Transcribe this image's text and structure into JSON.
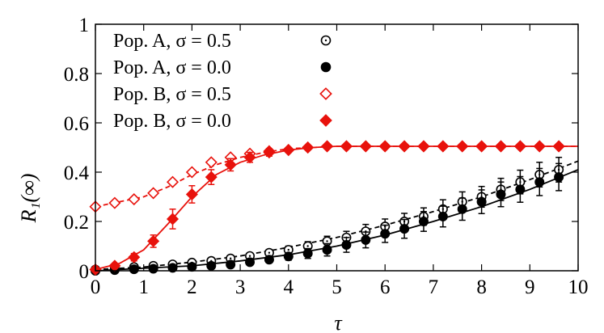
{
  "chart_data": {
    "type": "scatter",
    "title": "",
    "xlabel": "τ",
    "ylabel": "R₁(∞)",
    "xlim": [
      0,
      10
    ],
    "ylim": [
      0,
      1
    ],
    "x_ticks": [
      "0",
      "1",
      "2",
      "3",
      "4",
      "5",
      "6",
      "7",
      "8",
      "9",
      "10"
    ],
    "y_ticks": [
      "0",
      "0.2",
      "0.4",
      "0.6",
      "0.8",
      "1"
    ],
    "legend_position": "top-left",
    "grid": false,
    "series": [
      {
        "name": "Pop. A, σ = 0.5",
        "color": "#000000",
        "marker": "open-circle",
        "line": "dashed",
        "x": [
          0,
          0.4,
          0.8,
          1.2,
          1.6,
          2.0,
          2.4,
          2.8,
          3.2,
          3.6,
          4.0,
          4.4,
          4.8,
          5.2,
          5.6,
          6.0,
          6.4,
          6.8,
          7.2,
          7.6,
          8.0,
          8.4,
          8.8,
          9.2,
          9.6
        ],
        "y": [
          0.005,
          0.01,
          0.015,
          0.02,
          0.026,
          0.033,
          0.04,
          0.05,
          0.06,
          0.073,
          0.085,
          0.1,
          0.12,
          0.135,
          0.16,
          0.18,
          0.2,
          0.22,
          0.25,
          0.28,
          0.3,
          0.33,
          0.36,
          0.39,
          0.41
        ],
        "error": [
          0,
          0,
          0,
          0,
          0,
          0,
          0.005,
          0.008,
          0.01,
          0.012,
          0.015,
          0.018,
          0.02,
          0.025,
          0.028,
          0.03,
          0.033,
          0.035,
          0.038,
          0.04,
          0.042,
          0.045,
          0.048,
          0.05,
          0.05
        ],
        "fit_x": [
          0,
          1,
          2,
          3,
          4,
          5,
          6,
          7,
          8,
          9,
          10
        ],
        "fit_y": [
          0.005,
          0.015,
          0.035,
          0.06,
          0.095,
          0.135,
          0.185,
          0.24,
          0.3,
          0.37,
          0.445
        ]
      },
      {
        "name": "Pop. A, σ = 0.0",
        "color": "#000000",
        "marker": "filled-circle",
        "line": "solid",
        "x": [
          0,
          0.4,
          0.8,
          1.2,
          1.6,
          2.0,
          2.4,
          2.8,
          3.2,
          3.6,
          4.0,
          4.4,
          4.8,
          5.2,
          5.6,
          6.0,
          6.4,
          6.8,
          7.2,
          7.6,
          8.0,
          8.4,
          8.8,
          9.2,
          9.6
        ],
        "y": [
          0.0,
          0.003,
          0.006,
          0.008,
          0.012,
          0.016,
          0.02,
          0.025,
          0.035,
          0.045,
          0.058,
          0.07,
          0.085,
          0.105,
          0.125,
          0.15,
          0.17,
          0.2,
          0.22,
          0.25,
          0.28,
          0.31,
          0.33,
          0.36,
          0.38
        ],
        "error": [
          0,
          0,
          0,
          0,
          0,
          0,
          0.005,
          0.008,
          0.01,
          0.012,
          0.015,
          0.02,
          0.025,
          0.03,
          0.032,
          0.035,
          0.038,
          0.04,
          0.042,
          0.045,
          0.048,
          0.05,
          0.052,
          0.055,
          0.055
        ],
        "fit_x": [
          0,
          1,
          2,
          3,
          4,
          5,
          6,
          7,
          8,
          9,
          10
        ],
        "fit_y": [
          0.0,
          0.01,
          0.02,
          0.04,
          0.065,
          0.1,
          0.145,
          0.2,
          0.26,
          0.33,
          0.41
        ]
      },
      {
        "name": "Pop. B, σ = 0.5",
        "color": "#e8120c",
        "marker": "open-diamond",
        "line": "dashed",
        "x": [
          0,
          0.4,
          0.8,
          1.2,
          1.6,
          2.0,
          2.4,
          2.8,
          3.2,
          3.6,
          4.0,
          4.4,
          4.8,
          5.2,
          5.6,
          6.0,
          6.4,
          6.8,
          7.2,
          7.6,
          8.0,
          8.4,
          8.8,
          9.2,
          9.6
        ],
        "y": [
          0.26,
          0.275,
          0.29,
          0.315,
          0.36,
          0.4,
          0.44,
          0.46,
          0.475,
          0.485,
          0.49,
          0.5,
          0.505,
          0.505,
          0.505,
          0.505,
          0.505,
          0.505,
          0.505,
          0.505,
          0.505,
          0.505,
          0.505,
          0.505,
          0.505
        ],
        "fit_x": [
          0,
          0.5,
          1,
          1.5,
          2,
          2.5,
          3,
          3.5,
          4,
          4.5,
          5,
          10
        ],
        "fit_y": [
          0.26,
          0.28,
          0.3,
          0.34,
          0.39,
          0.43,
          0.46,
          0.48,
          0.495,
          0.5,
          0.505,
          0.505
        ]
      },
      {
        "name": "Pop. B, σ = 0.0",
        "color": "#e8120c",
        "marker": "filled-diamond",
        "line": "solid",
        "x": [
          0,
          0.4,
          0.8,
          1.2,
          1.6,
          2.0,
          2.4,
          2.8,
          3.2,
          3.6,
          4.0,
          4.4,
          4.8,
          5.2,
          5.6,
          6.0,
          6.4,
          6.8,
          7.2,
          7.6,
          8.0,
          8.4,
          8.8,
          9.2,
          9.6
        ],
        "y": [
          0.005,
          0.02,
          0.055,
          0.12,
          0.21,
          0.31,
          0.38,
          0.43,
          0.46,
          0.48,
          0.49,
          0.5,
          0.505,
          0.505,
          0.505,
          0.505,
          0.505,
          0.505,
          0.505,
          0.505,
          0.505,
          0.505,
          0.505,
          0.505,
          0.505
        ],
        "error": [
          0,
          0.005,
          0.015,
          0.025,
          0.04,
          0.035,
          0.03,
          0.025,
          0.02,
          0.015,
          0.01,
          0.005,
          0,
          0,
          0,
          0,
          0,
          0,
          0,
          0,
          0,
          0,
          0,
          0,
          0
        ],
        "fit_x": [
          0,
          0.5,
          1,
          1.5,
          2,
          2.5,
          3,
          3.5,
          4,
          4.5,
          5,
          10
        ],
        "fit_y": [
          0.005,
          0.03,
          0.085,
          0.19,
          0.3,
          0.39,
          0.44,
          0.47,
          0.49,
          0.5,
          0.505,
          0.505
        ]
      }
    ]
  }
}
